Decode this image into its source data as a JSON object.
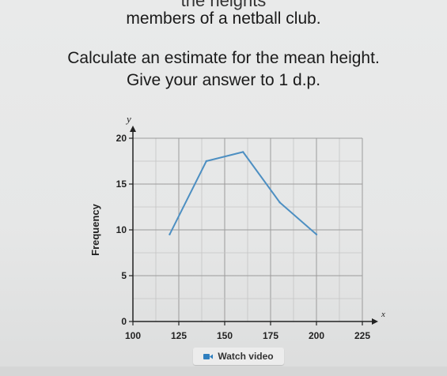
{
  "question": {
    "top_cut_text": "the heights",
    "line1": "members of a netball club.",
    "line2": "Calculate an estimate for the mean height.",
    "line3": "Give your answer to 1 d.p."
  },
  "watch_video": {
    "label": "Watch video",
    "icon": "video-camera-icon"
  },
  "chart_data": {
    "type": "line",
    "xlabel": "x",
    "ylabel": "Frequency",
    "y_axis_letter": "y",
    "xlim": [
      100,
      225
    ],
    "ylim": [
      0,
      20
    ],
    "x_ticks": [
      100,
      125,
      150,
      175,
      200,
      225
    ],
    "y_ticks": [
      0,
      5,
      10,
      15,
      20
    ],
    "grid": true,
    "series": [
      {
        "x": [
          120,
          140,
          160,
          180,
          200
        ],
        "y": [
          9.5,
          17.5,
          18.5,
          13,
          9.5
        ]
      }
    ],
    "line_color": "#4d8fc2"
  }
}
